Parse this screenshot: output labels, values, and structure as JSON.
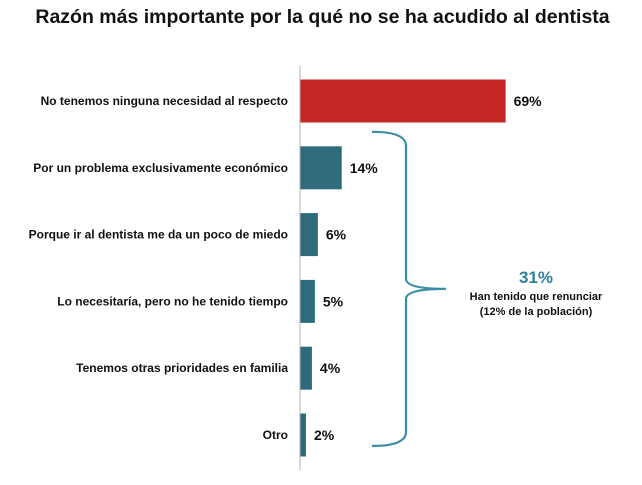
{
  "title": "Razón más importante por la qué no se ha acudido al dentista",
  "chart_data": {
    "type": "bar",
    "orientation": "horizontal",
    "categories": [
      "No tenemos ninguna necesidad al respecto",
      "Por un problema exclusivamente económico",
      "Porque ir al dentista me da un poco de miedo",
      "Lo necesitaría, pero no he tenido tiempo",
      "Tenemos otras prioridades en familia",
      "Otro"
    ],
    "values": [
      69,
      14,
      6,
      5,
      4,
      2
    ],
    "value_labels": [
      "69%",
      "14%",
      "6%",
      "5%",
      "4%",
      "2%"
    ],
    "bar_colors": [
      "#c32624",
      "#2e6b7c",
      "#2e6b7c",
      "#2e6b7c",
      "#2e6b7c",
      "#2e6b7c"
    ],
    "xlim": [
      0,
      100
    ],
    "grid": false,
    "annotation": {
      "bracket_range": [
        1,
        5
      ],
      "value": "31%",
      "line1": "Han tenido que renunciar",
      "line2": "(12% de la población)",
      "value_color": "#2e7f9c",
      "bracket_color": "#3b8ea6"
    }
  }
}
